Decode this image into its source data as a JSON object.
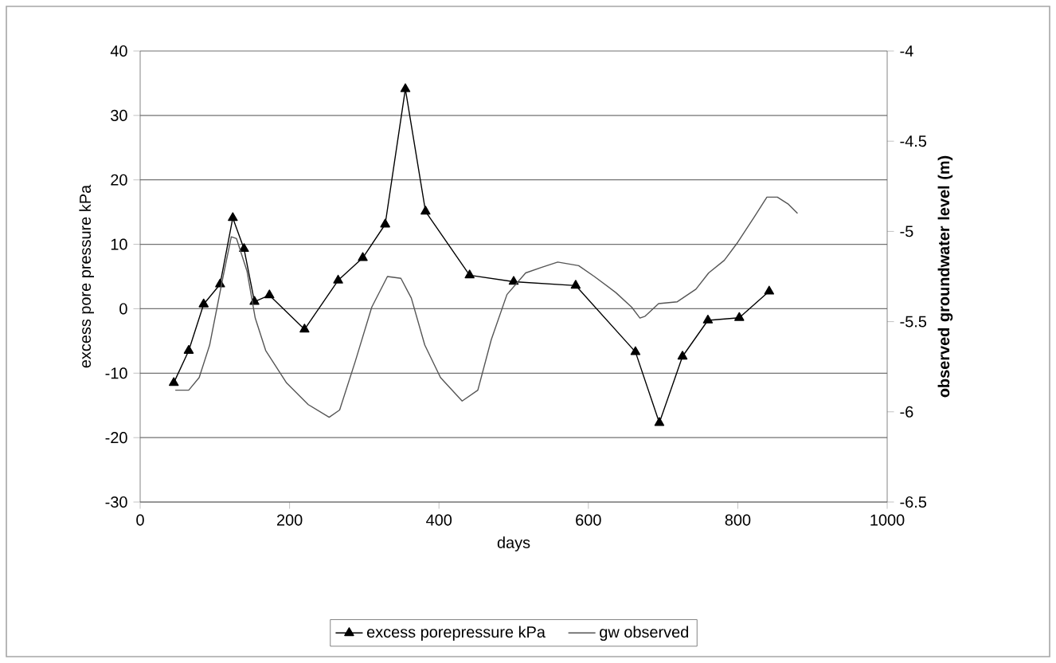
{
  "chart_data": {
    "type": "line",
    "xlabel": "days",
    "ylabel": "excess pore pressure kPa",
    "y2label": "observed groundwater level (m)",
    "xlim": [
      0,
      1000
    ],
    "xticks": [
      0,
      200,
      400,
      600,
      800,
      1000
    ],
    "ylim": [
      -30,
      40
    ],
    "yticks": [
      -30,
      -20,
      -10,
      0,
      10,
      20,
      30,
      40
    ],
    "y2lim": [
      -6.5,
      -4
    ],
    "y2ticks": [
      -6.5,
      -6,
      -5.5,
      -5,
      -4.5,
      -4
    ],
    "grid": "y",
    "legend": "bottom",
    "series": [
      {
        "name": "excess porepressure kPa",
        "color": "#000000",
        "marker": "triangle",
        "x": [
          45,
          65,
          85,
          107,
          124,
          139,
          153,
          173,
          220,
          265,
          298,
          328,
          355,
          382,
          441,
          500,
          583,
          663,
          695,
          726,
          760,
          802,
          842
        ],
        "values": [
          -11.5,
          -6.5,
          0.7,
          3.8,
          14.1,
          9.3,
          1.1,
          2.1,
          -3.2,
          4.4,
          7.9,
          13.1,
          34.1,
          15.1,
          5.2,
          4.2,
          3.6,
          -6.7,
          -17.7,
          -7.4,
          -1.8,
          -1.4,
          2.7
        ]
      },
      {
        "name": "gw observed",
        "color": "#555555",
        "marker": "none",
        "axis": "y2",
        "x": [
          47,
          65,
          79,
          93,
          111,
          122,
          129,
          143,
          154,
          168,
          196,
          225,
          253,
          267,
          288,
          310,
          331,
          349,
          363,
          381,
          402,
          431,
          452,
          470,
          491,
          516,
          537,
          559,
          587,
          608,
          637,
          658,
          669,
          676,
          694,
          719,
          744,
          761,
          782,
          800,
          822,
          839,
          853,
          868,
          880
        ],
        "values": [
          -5.88,
          -5.88,
          -5.81,
          -5.63,
          -5.25,
          -5.03,
          -5.04,
          -5.22,
          -5.48,
          -5.66,
          -5.84,
          -5.96,
          -6.03,
          -5.99,
          -5.72,
          -5.42,
          -5.25,
          -5.26,
          -5.37,
          -5.63,
          -5.81,
          -5.94,
          -5.88,
          -5.6,
          -5.35,
          -5.23,
          -5.2,
          -5.17,
          -5.19,
          -5.25,
          -5.34,
          -5.42,
          -5.48,
          -5.47,
          -5.4,
          -5.39,
          -5.32,
          -5.23,
          -5.16,
          -5.06,
          -4.92,
          -4.81,
          -4.81,
          -4.85,
          -4.9
        ]
      }
    ]
  }
}
